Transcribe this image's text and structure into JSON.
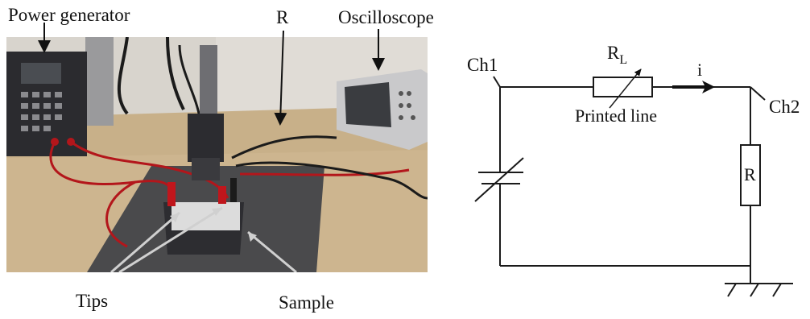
{
  "photo": {
    "labels": {
      "power_generator": "Power generator",
      "resistor": "R",
      "oscilloscope": "Oscilloscope",
      "tips": "Tips",
      "sample": "Sample"
    }
  },
  "circuit": {
    "labels": {
      "ch1": "Ch1",
      "ch2": "Ch2",
      "rl_main": "R",
      "rl_sub": "L",
      "current": "i",
      "printed_line": "Printed line",
      "resistor": "R"
    },
    "colors": {
      "wire": "#1a1a1a"
    }
  },
  "colors": {
    "wall": "#d9d5cf",
    "desk": "#c9b28e",
    "mat": "#4a4a4c",
    "equipment": "#2a2a2e",
    "cable_red": "#b3161b",
    "arrow_gray": "#c8c8c8"
  }
}
